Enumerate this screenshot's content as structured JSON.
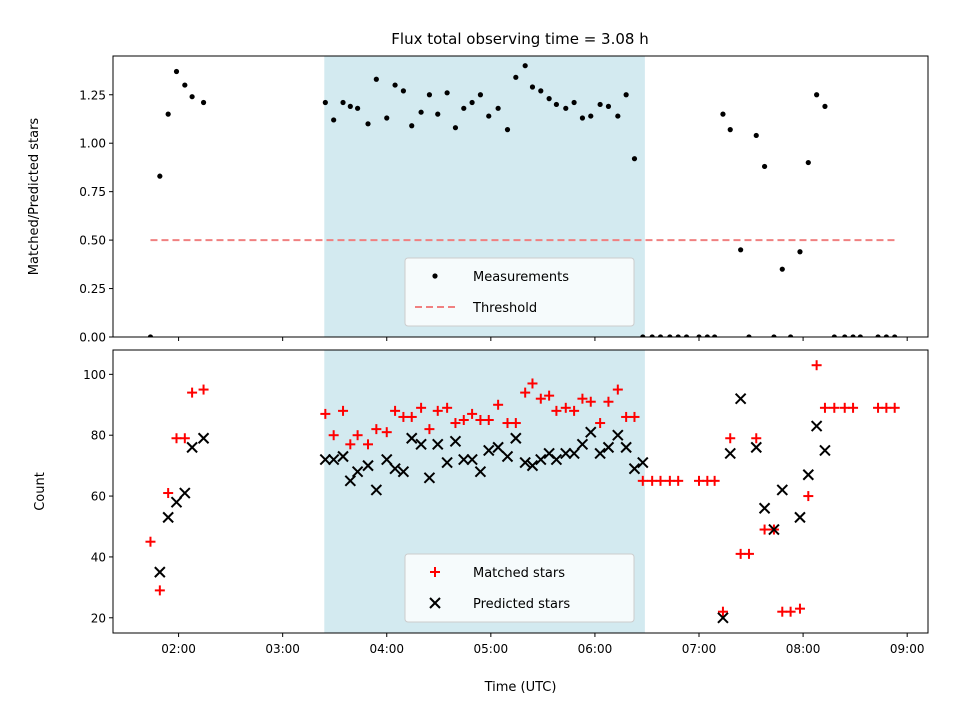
{
  "chart_data": [
    {
      "type": "scatter",
      "title": "Flux total observing time = 3.08 h",
      "xlabel": "",
      "ylabel": "Matched/Predicted stars",
      "xlim": [
        1.37,
        9.2
      ],
      "ylim": [
        0,
        1.45
      ],
      "yticks": [
        0,
        0.25,
        0.5,
        0.75,
        1.0,
        1.25
      ],
      "ytick_labels": [
        "0.00",
        "0.25",
        "0.50",
        "0.75",
        "1.00",
        "1.25"
      ],
      "xticks": [
        2,
        3,
        4,
        5,
        6,
        7,
        8,
        9
      ],
      "xtick_labels": [],
      "shaded_x": [
        3.4,
        6.48
      ],
      "shaded_color": "#d3eaf0",
      "legend_position": "bottom-center",
      "series": [
        {
          "name": "Measurements",
          "marker": "dot",
          "color": "#000000",
          "x": [
            1.73,
            1.82,
            1.9,
            1.98,
            2.06,
            2.13,
            2.24,
            3.41,
            3.49,
            3.58,
            3.65,
            3.72,
            3.82,
            3.9,
            4.0,
            4.08,
            4.16,
            4.24,
            4.33,
            4.41,
            4.49,
            4.58,
            4.66,
            4.74,
            4.82,
            4.9,
            4.98,
            5.07,
            5.16,
            5.24,
            5.33,
            5.4,
            5.48,
            5.56,
            5.63,
            5.72,
            5.8,
            5.88,
            5.96,
            6.05,
            6.13,
            6.22,
            6.3,
            6.38,
            6.46,
            6.55,
            6.63,
            6.72,
            6.8,
            6.88,
            7.0,
            7.08,
            7.15,
            7.23,
            7.3,
            7.4,
            7.48,
            7.55,
            7.63,
            7.72,
            7.8,
            7.88,
            7.97,
            8.05,
            8.13,
            8.21,
            8.3,
            8.4,
            8.48,
            8.55,
            8.72,
            8.8,
            8.88
          ],
          "y": [
            0,
            0.83,
            1.15,
            1.37,
            1.3,
            1.24,
            1.21,
            1.21,
            1.12,
            1.21,
            1.19,
            1.18,
            1.1,
            1.33,
            1.13,
            1.3,
            1.27,
            1.09,
            1.16,
            1.25,
            1.15,
            1.26,
            1.08,
            1.18,
            1.21,
            1.25,
            1.14,
            1.18,
            1.07,
            1.34,
            1.4,
            1.29,
            1.27,
            1.23,
            1.2,
            1.18,
            1.21,
            1.13,
            1.14,
            1.2,
            1.19,
            1.14,
            1.25,
            0.92,
            0,
            0,
            0,
            0,
            0,
            0,
            0,
            0,
            0,
            1.15,
            1.07,
            0.45,
            0,
            1.04,
            0.88,
            0,
            0.35,
            0,
            0.44,
            0.9,
            1.25,
            1.19,
            0,
            0,
            0,
            0,
            0,
            0,
            0
          ]
        },
        {
          "name": "Threshold",
          "marker": "dashed-line",
          "color": "#f08080",
          "x": [
            1.73,
            8.88
          ],
          "y": [
            0.5,
            0.5
          ]
        }
      ]
    },
    {
      "type": "scatter",
      "title": "",
      "xlabel": "Time (UTC)",
      "ylabel": "Count",
      "xlim": [
        1.37,
        9.2
      ],
      "ylim": [
        15,
        108
      ],
      "yticks": [
        20,
        40,
        60,
        80,
        100
      ],
      "ytick_labels": [
        "20",
        "40",
        "60",
        "80",
        "100"
      ],
      "xticks": [
        2,
        3,
        4,
        5,
        6,
        7,
        8,
        9
      ],
      "xtick_labels": [
        "02:00",
        "03:00",
        "04:00",
        "05:00",
        "06:00",
        "07:00",
        "08:00",
        "09:00"
      ],
      "shaded_x": [
        3.4,
        6.48
      ],
      "shaded_color": "#d3eaf0",
      "legend_position": "bottom-center",
      "series": [
        {
          "name": "Matched stars",
          "marker": "plus",
          "color": "#ff0000",
          "x": [
            1.73,
            1.82,
            1.9,
            1.98,
            2.06,
            2.13,
            2.24,
            3.41,
            3.49,
            3.58,
            3.65,
            3.72,
            3.82,
            3.9,
            4.0,
            4.08,
            4.16,
            4.24,
            4.33,
            4.41,
            4.49,
            4.58,
            4.66,
            4.74,
            4.82,
            4.9,
            4.98,
            5.07,
            5.16,
            5.24,
            5.33,
            5.4,
            5.48,
            5.56,
            5.63,
            5.72,
            5.8,
            5.88,
            5.96,
            6.05,
            6.13,
            6.22,
            6.3,
            6.38,
            6.46,
            6.55,
            6.63,
            6.72,
            6.8,
            7.0,
            7.08,
            7.15,
            7.23,
            7.3,
            7.4,
            7.48,
            7.55,
            7.63,
            7.72,
            7.8,
            7.88,
            7.97,
            8.05,
            8.13,
            8.21,
            8.3,
            8.4,
            8.48,
            8.72,
            8.8,
            8.88
          ],
          "y": [
            45,
            29,
            61,
            79,
            79,
            94,
            95,
            87,
            80,
            88,
            77,
            80,
            77,
            82,
            81,
            88,
            86,
            86,
            89,
            82,
            88,
            89,
            84,
            85,
            87,
            85,
            85,
            90,
            84,
            84,
            94,
            97,
            92,
            93,
            88,
            89,
            88,
            92,
            91,
            84,
            91,
            95,
            86,
            86,
            65,
            65,
            65,
            65,
            65,
            65,
            65,
            65,
            22,
            79,
            41,
            41,
            79,
            49,
            49,
            22,
            22,
            23,
            60,
            103,
            89,
            89,
            89,
            89,
            89,
            89,
            89
          ]
        },
        {
          "name": "Predicted stars",
          "marker": "cross",
          "color": "#000000",
          "x": [
            1.82,
            1.9,
            1.98,
            2.06,
            2.13,
            2.24,
            3.41,
            3.49,
            3.58,
            3.65,
            3.72,
            3.82,
            3.9,
            4.0,
            4.08,
            4.16,
            4.24,
            4.33,
            4.41,
            4.49,
            4.58,
            4.66,
            4.74,
            4.82,
            4.9,
            4.98,
            5.07,
            5.16,
            5.24,
            5.33,
            5.4,
            5.48,
            5.56,
            5.63,
            5.72,
            5.8,
            5.88,
            5.96,
            6.05,
            6.13,
            6.22,
            6.3,
            6.38,
            6.46,
            7.23,
            7.3,
            7.4,
            7.55,
            7.63,
            7.72,
            7.8,
            7.97,
            8.05,
            8.13,
            8.21
          ],
          "y": [
            35,
            53,
            58,
            61,
            76,
            79,
            72,
            72,
            73,
            65,
            68,
            70,
            62,
            72,
            69,
            68,
            79,
            77,
            66,
            77,
            71,
            78,
            72,
            72,
            68,
            75,
            76,
            73,
            79,
            71,
            70,
            72,
            74,
            72,
            74,
            74,
            77,
            81,
            74,
            76,
            80,
            76,
            69,
            71,
            20,
            74,
            92,
            76,
            56,
            49,
            62,
            53,
            67,
            83,
            75
          ]
        }
      ]
    }
  ]
}
